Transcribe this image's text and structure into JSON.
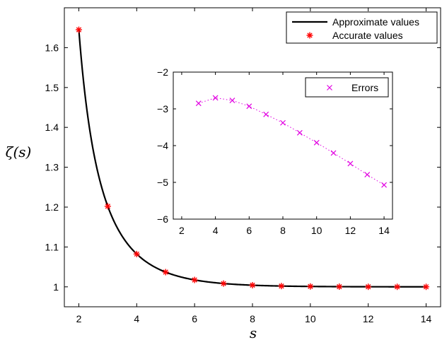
{
  "chart_data": [
    {
      "type": "line",
      "xlabel": "s",
      "ylabel": "ζ(s)",
      "xlim": [
        1.5,
        14.5
      ],
      "ylim": [
        0.95,
        1.7
      ],
      "xticks": [
        2,
        4,
        6,
        8,
        10,
        12,
        14
      ],
      "yticks": [
        1,
        1.1,
        1.2,
        1.3,
        1.4,
        1.5,
        1.6
      ],
      "xtick_labels": [
        "2",
        "4",
        "6",
        "8",
        "10",
        "12",
        "14"
      ],
      "ytick_labels": [
        "1",
        "1.1",
        "1.2",
        "1.3",
        "1.4",
        "1.5",
        "1.6"
      ],
      "legend_position": "top-right",
      "series": [
        {
          "name": "Approximate values",
          "style": "solid-line",
          "color": "#000000",
          "function": "riemann-zeta",
          "x_range": [
            2,
            14
          ]
        },
        {
          "name": "Accurate values",
          "style": "asterisk-markers",
          "color": "#ff0000",
          "x": [
            2,
            3,
            4,
            5,
            6,
            7,
            8,
            9,
            10,
            11,
            12,
            13,
            14
          ],
          "y": [
            1.6449,
            1.2021,
            1.0823,
            1.0369,
            1.0173,
            1.0083,
            1.0041,
            1.002,
            1.001,
            1.0005,
            1.0002,
            1.0001,
            1.0001
          ]
        }
      ]
    },
    {
      "type": "scatter",
      "xlim": [
        1.5,
        14.5
      ],
      "ylim": [
        -6,
        -2
      ],
      "xticks": [
        2,
        4,
        6,
        8,
        10,
        12,
        14
      ],
      "yticks": [
        -6,
        -5,
        -4,
        -3,
        -2
      ],
      "xtick_labels": [
        "2",
        "4",
        "6",
        "8",
        "10",
        "12",
        "14"
      ],
      "ytick_labels": [
        "−6",
        "−5",
        "−4",
        "−3",
        "−2"
      ],
      "legend_position": "top-right",
      "series": [
        {
          "name": "Errors",
          "style": "x-markers-dotted-line",
          "color": "#e100e1",
          "x": [
            3,
            4,
            5,
            6,
            7,
            8,
            9,
            10,
            11,
            12,
            13,
            14
          ],
          "y": [
            -2.85,
            -2.7,
            -2.77,
            -2.93,
            -3.15,
            -3.38,
            -3.65,
            -3.92,
            -4.2,
            -4.49,
            -4.79,
            -5.07
          ]
        }
      ]
    }
  ]
}
